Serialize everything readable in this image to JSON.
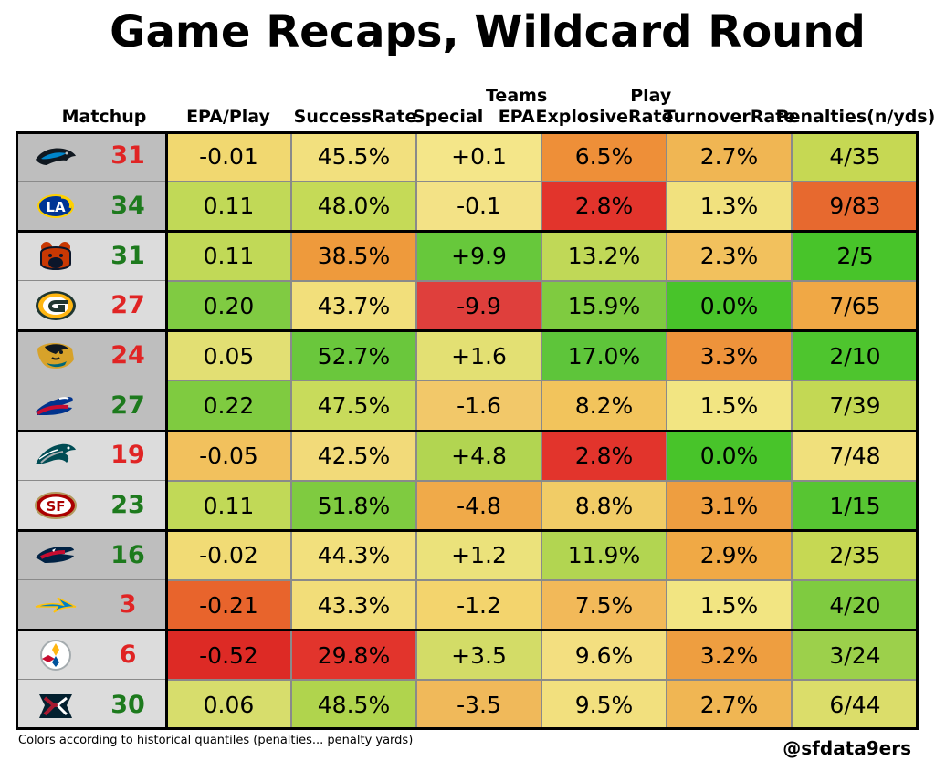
{
  "title": "Game Recaps, Wildcard Round",
  "footnote": "Colors according to historical quantiles (penalties... penalty yards)",
  "credit": "@sfdata9ers",
  "chart_data": {
    "type": "table",
    "columns": [
      {
        "key": "matchup",
        "lines": [
          "Matchup"
        ]
      },
      {
        "key": "epa",
        "lines": [
          "EPA/Play"
        ]
      },
      {
        "key": "success",
        "lines": [
          "Success",
          "Rate"
        ]
      },
      {
        "key": "st_epa",
        "lines": [
          "Special",
          "Teams EPA"
        ]
      },
      {
        "key": "explosive",
        "lines": [
          "Explosive",
          "Play Rate"
        ]
      },
      {
        "key": "turnover",
        "lines": [
          "Turnover",
          "Rate"
        ]
      },
      {
        "key": "penalties",
        "lines": [
          "Penalties",
          "(n/yds)"
        ]
      }
    ],
    "rows": [
      {
        "team": "Panthers",
        "logo": "panthers-logo",
        "score": "31",
        "result": "loss",
        "values": [
          "-0.01",
          "45.5%",
          "+0.1",
          "6.5%",
          "2.7%",
          "4/35"
        ],
        "colors": [
          "#f1d870",
          "#f2e07e",
          "#f4e689",
          "#ee8f38",
          "#f0b653",
          "#c6d853"
        ]
      },
      {
        "team": "Rams",
        "logo": "rams-logo",
        "score": "34",
        "result": "win",
        "values": [
          "0.11",
          "48.0%",
          "-0.1",
          "2.8%",
          "1.3%",
          "9/83"
        ],
        "colors": [
          "#c1d957",
          "#c5da57",
          "#f3e286",
          "#e2342c",
          "#f1e17e",
          "#e7692f"
        ]
      },
      {
        "team": "Bears",
        "logo": "bears-logo",
        "score": "31",
        "result": "win",
        "values": [
          "0.11",
          "38.5%",
          "+9.9",
          "13.2%",
          "2.3%",
          "2/5"
        ],
        "colors": [
          "#c1d957",
          "#ee9a3c",
          "#67c83b",
          "#c0d857",
          "#f2c15d",
          "#48c42a"
        ]
      },
      {
        "team": "Packers",
        "logo": "packers-logo",
        "score": "27",
        "result": "loss",
        "values": [
          "0.20",
          "43.7%",
          "-9.9",
          "15.9%",
          "0.0%",
          "7/65"
        ],
        "colors": [
          "#80cb42",
          "#f2df7b",
          "#df3f3c",
          "#7fcb40",
          "#48c42a",
          "#f0a845"
        ]
      },
      {
        "team": "Jaguars",
        "logo": "jaguars-logo",
        "score": "24",
        "result": "loss",
        "values": [
          "0.05",
          "52.7%",
          "+1.6",
          "17.0%",
          "3.3%",
          "2/10"
        ],
        "colors": [
          "#e2df73",
          "#6ac73c",
          "#e3e073",
          "#5ec53a",
          "#ee933b",
          "#4ec52e"
        ]
      },
      {
        "team": "Bills",
        "logo": "bills-logo",
        "score": "27",
        "result": "win",
        "values": [
          "0.22",
          "47.5%",
          "-1.6",
          "8.2%",
          "1.5%",
          "7/39"
        ],
        "colors": [
          "#7fcb40",
          "#c8db5b",
          "#f2c869",
          "#f2c45c",
          "#f2e582",
          "#c3d854"
        ]
      },
      {
        "team": "Eagles",
        "logo": "eagles-logo",
        "score": "19",
        "result": "loss",
        "values": [
          "-0.05",
          "42.5%",
          "+4.8",
          "2.8%",
          "0.0%",
          "7/48"
        ],
        "colors": [
          "#f2c15d",
          "#f2da79",
          "#b2d551",
          "#e2342c",
          "#48c42a",
          "#f0e07c"
        ]
      },
      {
        "team": "49ers",
        "logo": "49ers-logo",
        "score": "23",
        "result": "win",
        "values": [
          "0.11",
          "51.8%",
          "-4.8",
          "8.8%",
          "3.1%",
          "1/15"
        ],
        "colors": [
          "#c1d957",
          "#7fcb40",
          "#f0aa49",
          "#f1cc66",
          "#ee9e40",
          "#57c532"
        ]
      },
      {
        "team": "Patriots",
        "logo": "patriots-logo",
        "score": "16",
        "result": "win",
        "values": [
          "-0.02",
          "44.3%",
          "+1.2",
          "11.9%",
          "2.9%",
          "2/35"
        ],
        "colors": [
          "#f1db75",
          "#f2e07d",
          "#ebe27b",
          "#b2d551",
          "#f0a945",
          "#c6d853"
        ]
      },
      {
        "team": "Chargers",
        "logo": "chargers-logo",
        "score": "3",
        "result": "loss",
        "values": [
          "-0.21",
          "43.3%",
          "-1.2",
          "7.5%",
          "1.5%",
          "4/20"
        ],
        "colors": [
          "#e8642c",
          "#f2dd79",
          "#f3d46d",
          "#f2b959",
          "#f2e582",
          "#7fcb40"
        ]
      },
      {
        "team": "Steelers",
        "logo": "steelers-logo",
        "score": "6",
        "result": "loss",
        "values": [
          "-0.52",
          "29.8%",
          "+3.5",
          "9.6%",
          "3.2%",
          "3/24"
        ],
        "colors": [
          "#dd2a25",
          "#e2342c",
          "#d3dc67",
          "#f3df80",
          "#ee9e40",
          "#9cd04b"
        ]
      },
      {
        "team": "Texans",
        "logo": "texans-logo",
        "score": "30",
        "result": "win",
        "values": [
          "0.06",
          "48.5%",
          "-3.5",
          "9.5%",
          "2.7%",
          "6/44"
        ],
        "colors": [
          "#d7dd6c",
          "#b0d44d",
          "#f0b95a",
          "#f2e07e",
          "#f0b653",
          "#dbdd6a"
        ]
      }
    ],
    "score_colors": {
      "win": "#1d7a1d",
      "loss": "#e02424"
    },
    "team_cell_colors": [
      "#bebebe",
      "#dcdcdc"
    ]
  }
}
